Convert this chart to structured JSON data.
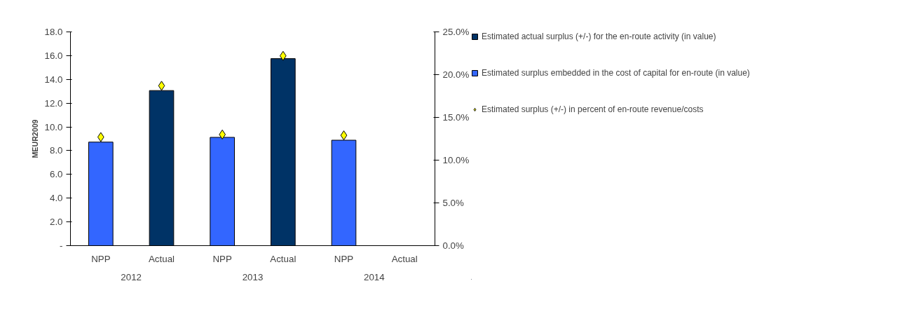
{
  "chart_data": {
    "type": "bar",
    "ylabel": "MEUR2009",
    "categories": [
      "NPP",
      "Actual",
      "NPP",
      "Actual",
      "NPP",
      "Actual"
    ],
    "annotations": [
      "2012",
      "2013",
      "2014"
    ],
    "series": [
      {
        "name": "Estimated actual surplus (+/-) for the en-route activity (in value)",
        "color": "#003366",
        "values": [
          null,
          13.06,
          null,
          15.75,
          null,
          null
        ]
      },
      {
        "name": "Estimated surplus embedded in the cost of capital for en-route (in value)",
        "color": "#3366ff",
        "values": [
          8.72,
          null,
          9.12,
          null,
          8.88,
          null
        ]
      },
      {
        "name": "Estimated surplus (+/-) in percent of en-route revenue/costs",
        "type": "scatter",
        "marker": "diamond",
        "axis": "y2",
        "color": "#ffff00",
        "values": [
          12.7,
          18.7,
          13.0,
          22.2,
          12.9,
          null
        ]
      }
    ],
    "ylim": [
      0,
      18
    ],
    "yticks": [
      {
        "value": 0,
        "label": "-"
      },
      {
        "value": 2,
        "label": "2.0"
      },
      {
        "value": 4,
        "label": "4.0"
      },
      {
        "value": 6,
        "label": "6.0"
      },
      {
        "value": 8,
        "label": "8.0"
      },
      {
        "value": 10,
        "label": "10.0"
      },
      {
        "value": 12,
        "label": "12.0"
      },
      {
        "value": 14,
        "label": "14.0"
      },
      {
        "value": 16,
        "label": "16.0"
      },
      {
        "value": 18,
        "label": "18.0"
      }
    ],
    "y2lim": [
      0,
      25
    ],
    "y2ticks": [
      {
        "value": 0,
        "label": "0.0%"
      },
      {
        "value": 5,
        "label": "5.0%"
      },
      {
        "value": 10,
        "label": "10.0%"
      },
      {
        "value": 15,
        "label": "15.0%"
      },
      {
        "value": 20,
        "label": "20.0%"
      },
      {
        "value": 25,
        "label": "25.0%"
      }
    ],
    "grid": false,
    "legend": "right"
  }
}
